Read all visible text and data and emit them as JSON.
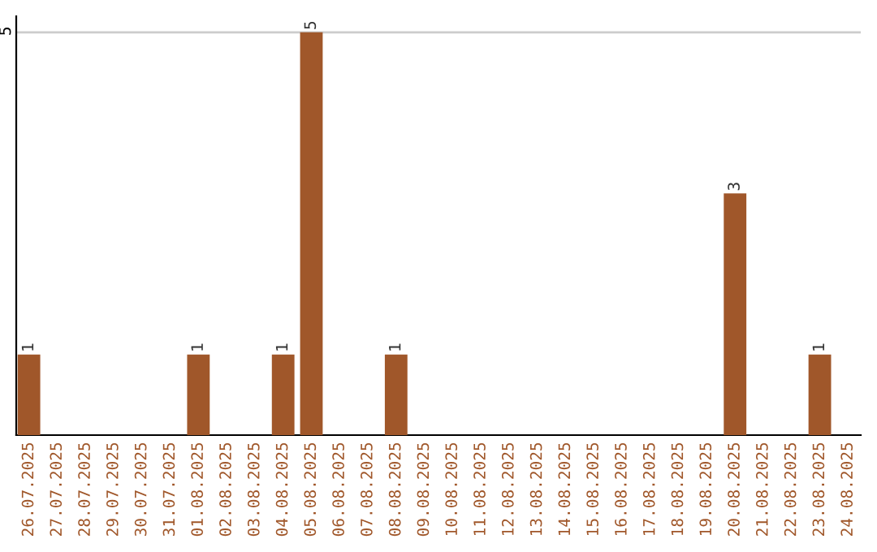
{
  "chart_data": {
    "type": "bar",
    "categories": [
      "26.07.2025",
      "27.07.2025",
      "28.07.2025",
      "29.07.2025",
      "30.07.2025",
      "31.07.2025",
      "01.08.2025",
      "02.08.2025",
      "03.08.2025",
      "04.08.2025",
      "05.08.2025",
      "06.08.2025",
      "07.08.2025",
      "08.08.2025",
      "09.08.2025",
      "10.08.2025",
      "11.08.2025",
      "12.08.2025",
      "13.08.2025",
      "14.08.2025",
      "15.08.2025",
      "16.08.2025",
      "17.08.2025",
      "18.08.2025",
      "19.08.2025",
      "20.08.2025",
      "21.08.2025",
      "22.08.2025",
      "23.08.2025",
      "24.08.2025"
    ],
    "values": [
      1,
      0,
      0,
      0,
      0,
      0,
      1,
      0,
      0,
      1,
      5,
      0,
      0,
      1,
      0,
      0,
      0,
      0,
      0,
      0,
      0,
      0,
      0,
      0,
      0,
      3,
      0,
      0,
      1,
      0
    ],
    "value_labels": [
      "1",
      null,
      null,
      null,
      null,
      null,
      "1",
      null,
      null,
      "1",
      "5",
      null,
      null,
      "1",
      null,
      null,
      null,
      null,
      null,
      null,
      null,
      null,
      null,
      null,
      null,
      "3",
      null,
      null,
      "1",
      null
    ],
    "color": "#a0572a",
    "ylim": [
      0,
      5.2
    ],
    "yticks": [
      5
    ],
    "grid": "y",
    "legend": false
  }
}
